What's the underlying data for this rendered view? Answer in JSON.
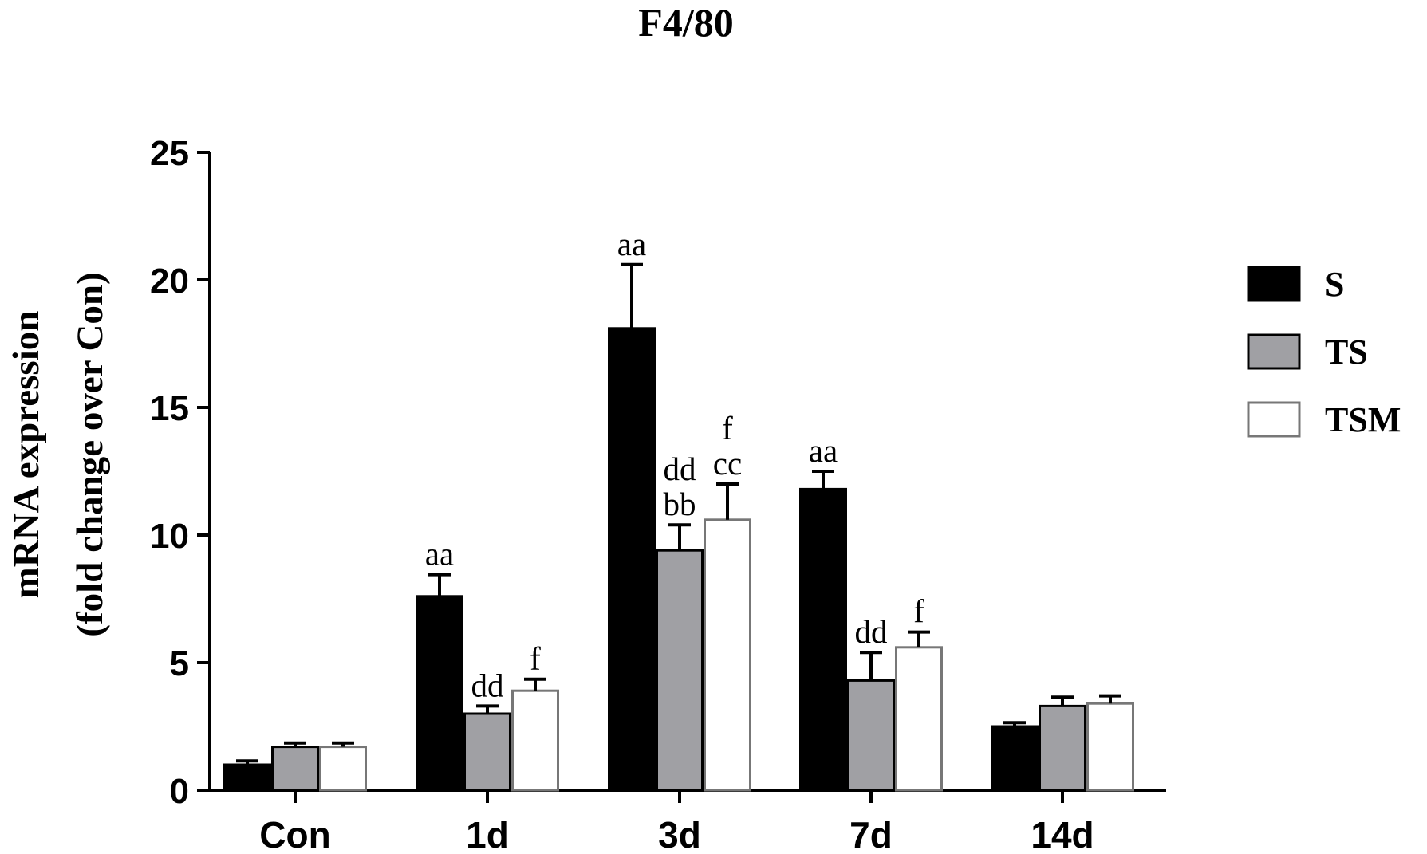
{
  "chart_data": {
    "type": "bar",
    "title": "F4/80",
    "ylabel_line1": "mRNA expression",
    "ylabel_line2": "(fold change over Con)",
    "ylim": [
      0,
      25
    ],
    "yticks": [
      "0",
      "5",
      "10",
      "15",
      "20",
      "25"
    ],
    "categories": [
      "Con",
      "1d",
      "3d",
      "7d",
      "14d"
    ],
    "series": [
      {
        "name": "S",
        "color": "#000000",
        "values": [
          1.0,
          7.6,
          18.1,
          11.8,
          2.5
        ],
        "errors": [
          0.15,
          0.85,
          2.5,
          0.7,
          0.15
        ]
      },
      {
        "name": "TS",
        "color": "#a0a0a4",
        "values": [
          1.7,
          3.0,
          9.4,
          4.3,
          3.3
        ],
        "errors": [
          0.15,
          0.3,
          1.0,
          1.1,
          0.35
        ]
      },
      {
        "name": "TSM",
        "color": "#ffffff",
        "values": [
          1.7,
          3.9,
          10.6,
          5.6,
          3.4
        ],
        "errors": [
          0.15,
          0.45,
          1.4,
          0.6,
          0.3
        ]
      }
    ],
    "annotations": [
      {
        "category": 1,
        "series": 0,
        "lines": [
          "aa"
        ]
      },
      {
        "category": 1,
        "series": 1,
        "lines": [
          "dd"
        ]
      },
      {
        "category": 1,
        "series": 2,
        "lines": [
          "f"
        ]
      },
      {
        "category": 2,
        "series": 0,
        "lines": [
          "aa"
        ]
      },
      {
        "category": 2,
        "series": 1,
        "lines": [
          "dd",
          "bb"
        ]
      },
      {
        "category": 2,
        "series": 2,
        "lines": [
          "f",
          "cc"
        ]
      },
      {
        "category": 3,
        "series": 0,
        "lines": [
          "aa"
        ]
      },
      {
        "category": 3,
        "series": 1,
        "lines": [
          "dd"
        ]
      },
      {
        "category": 3,
        "series": 2,
        "lines": [
          "f"
        ]
      }
    ],
    "legend": {
      "placement": "right"
    },
    "grid": false
  }
}
